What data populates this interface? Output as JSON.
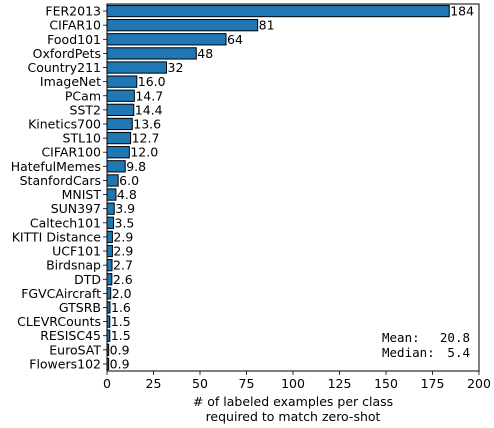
{
  "chart_data": {
    "type": "bar",
    "orientation": "horizontal",
    "categories": [
      "FER2013",
      "CIFAR10",
      "Food101",
      "OxfordPets",
      "Country211",
      "ImageNet",
      "PCam",
      "SST2",
      "Kinetics700",
      "STL10",
      "CIFAR100",
      "HatefulMemes",
      "StanfordCars",
      "MNIST",
      "SUN397",
      "Caltech101",
      "KITTI Distance",
      "UCF101",
      "Birdsnap",
      "DTD",
      "FGVCAircraft",
      "GTSRB",
      "CLEVRCounts",
      "RESISC45",
      "EuroSAT",
      "Flowers102"
    ],
    "values": [
      184,
      81,
      64,
      48,
      32,
      16.0,
      14.7,
      14.4,
      13.6,
      12.7,
      12.0,
      9.8,
      6.0,
      4.8,
      3.9,
      3.5,
      2.9,
      2.9,
      2.7,
      2.6,
      2.0,
      1.6,
      1.5,
      1.5,
      0.9,
      0.9
    ],
    "value_labels": [
      "184",
      "81",
      "64",
      "48",
      "32",
      "16.0",
      "14.7",
      "14.4",
      "13.6",
      "12.7",
      "12.0",
      "9.8",
      "6.0",
      "4.8",
      "3.9",
      "3.5",
      "2.9",
      "2.9",
      "2.7",
      "2.6",
      "2.0",
      "1.6",
      "1.5",
      "1.5",
      "0.9",
      "0.9"
    ],
    "xlabel_lines": [
      "# of labeled examples per class",
      "required to match zero-shot"
    ],
    "ylabel": "",
    "title": "",
    "xlim": [
      0,
      200
    ],
    "xticks": [
      0,
      25,
      50,
      75,
      100,
      125,
      150,
      175,
      200
    ],
    "bar_color": "#1f77b4",
    "edge_color": "#000000",
    "grid": false,
    "annotation": {
      "mean_label": "Mean:",
      "mean_value": "20.8",
      "median_label": "Median:",
      "median_value": "5.4",
      "placement": "bottom-right"
    }
  }
}
